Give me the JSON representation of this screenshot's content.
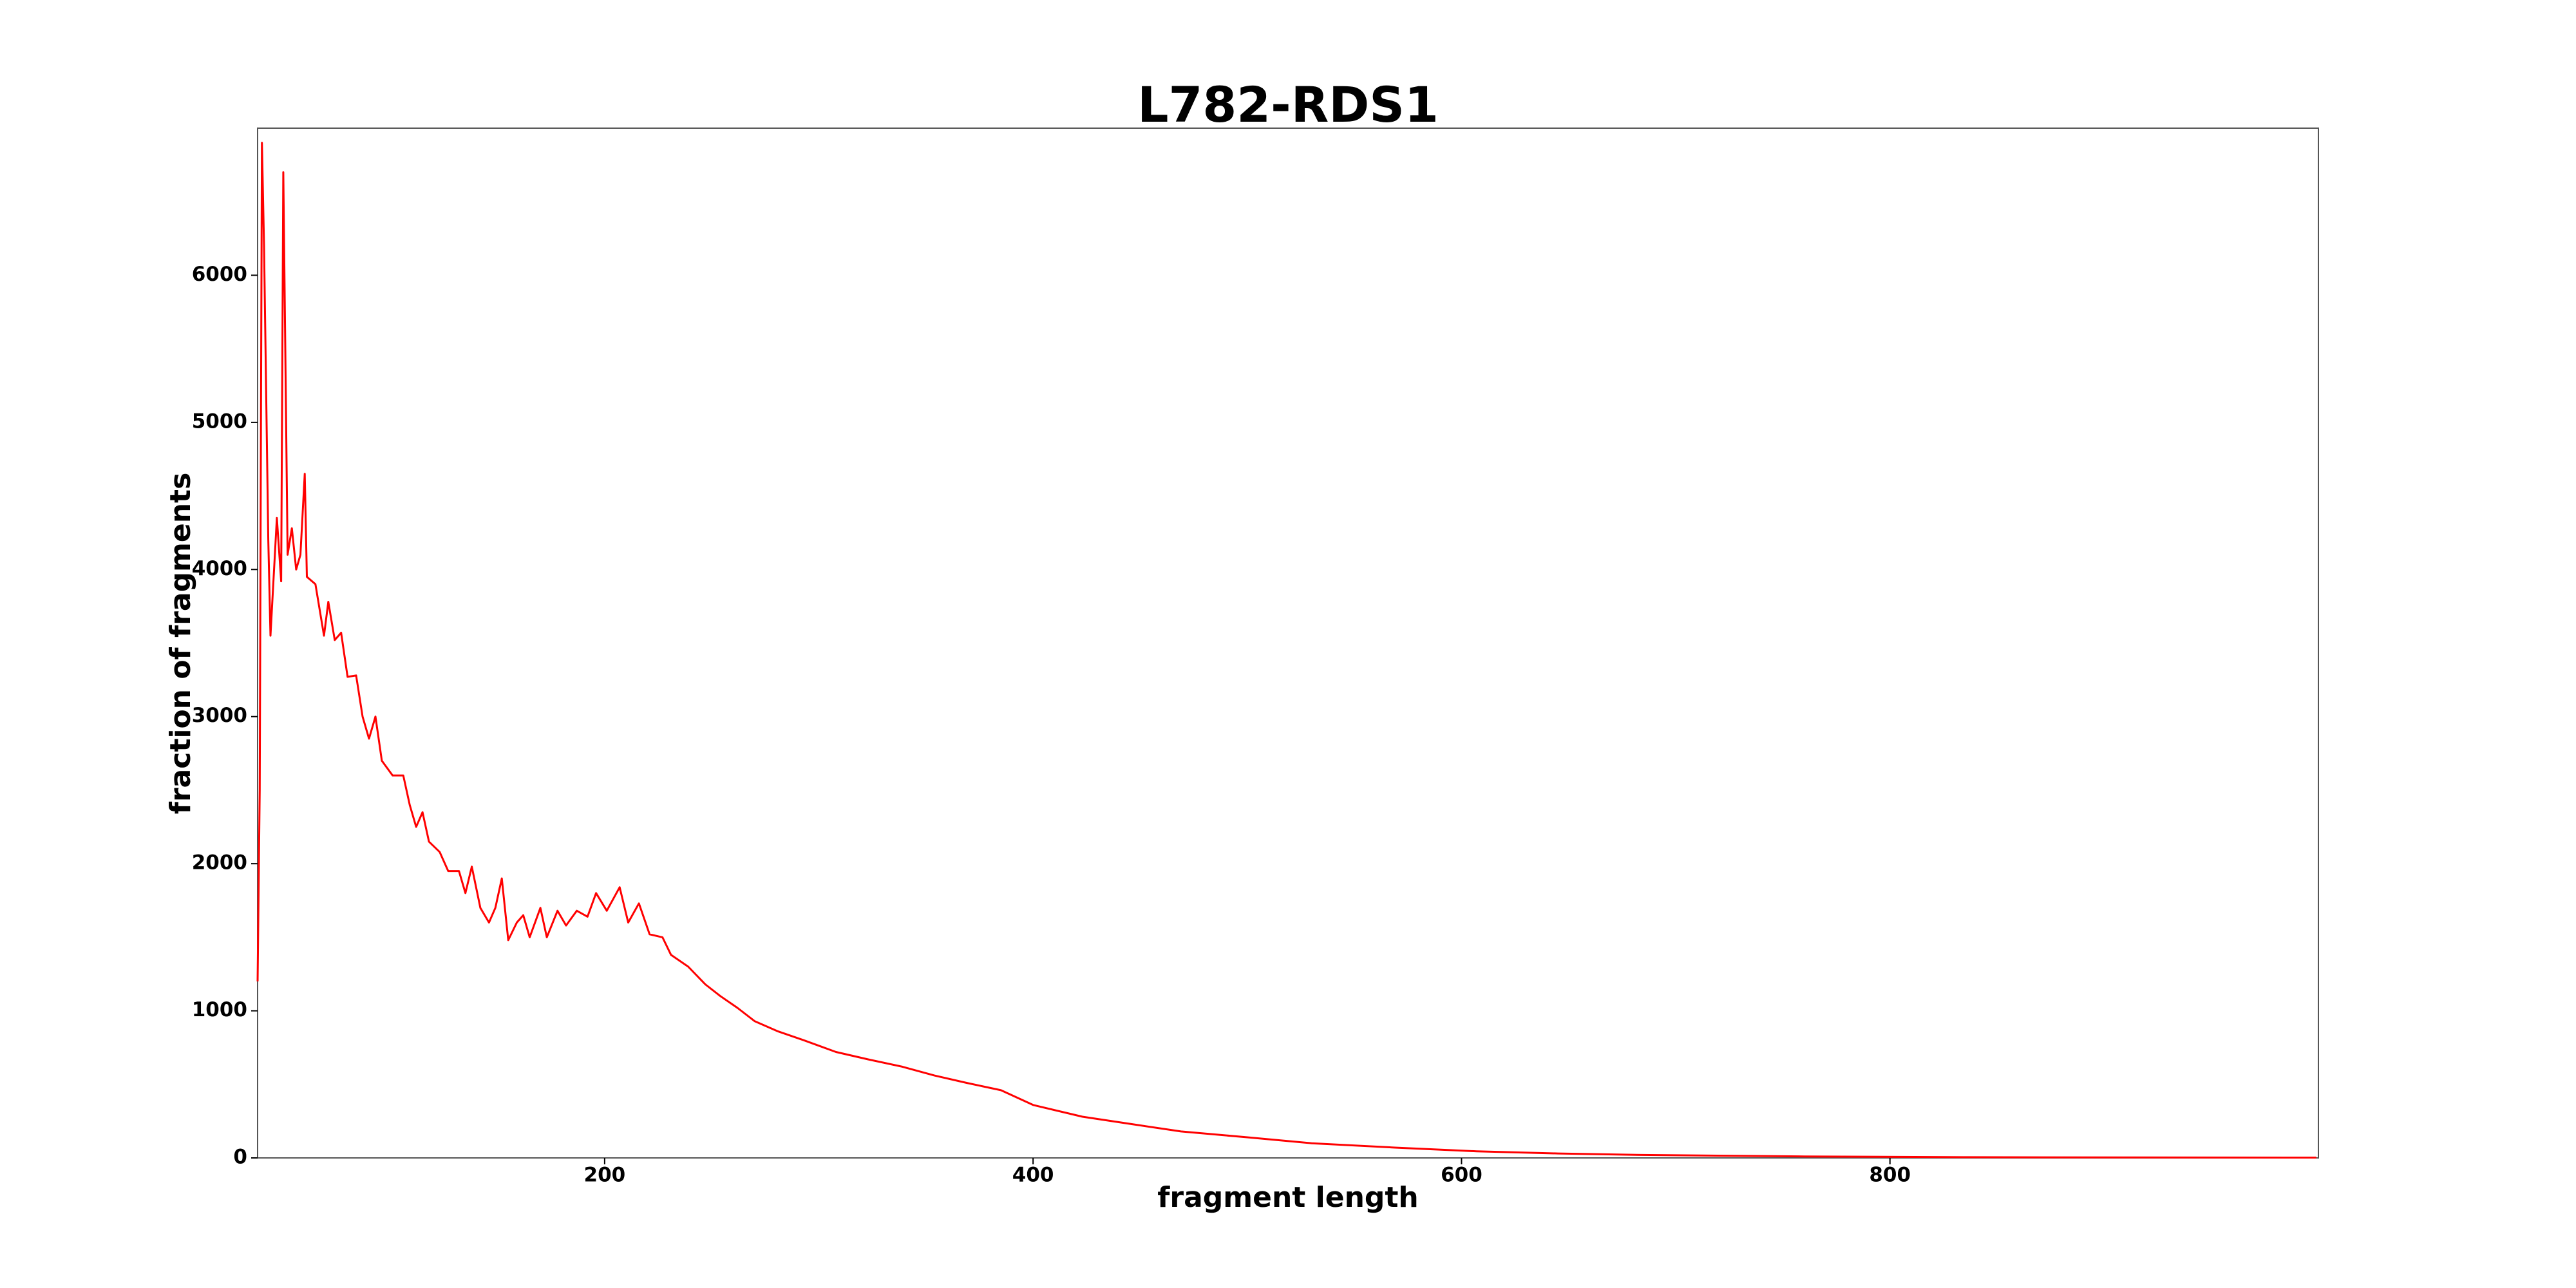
{
  "chart_data": {
    "type": "line",
    "title": "L782-RDS1",
    "x_label": "fragment length",
    "y_label": "fraction of fragments",
    "x": [
      38,
      39,
      40,
      41,
      43,
      44,
      47,
      49,
      50,
      52,
      54,
      56,
      58,
      60,
      61,
      65,
      69,
      71,
      74,
      77,
      80,
      84,
      87,
      90,
      93,
      96,
      101,
      106,
      109,
      112,
      115,
      118,
      123,
      127,
      132,
      135,
      138,
      142,
      146,
      149,
      152,
      155,
      159,
      162,
      165,
      170,
      173,
      178,
      182,
      187,
      192,
      196,
      201,
      207,
      211,
      216,
      221,
      227,
      231,
      239,
      247,
      254,
      262,
      270,
      281,
      293,
      308,
      323,
      339,
      354,
      369,
      385,
      400,
      423,
      446,
      469,
      500,
      530,
      569,
      607,
      645,
      684,
      760,
      837,
      914,
      999
    ],
    "series": [
      {
        "name": "L782-RDS1",
        "color": "#ff0000",
        "values": [
          1200,
          2500,
          6900,
          6200,
          4200,
          3550,
          4350,
          3920,
          6700,
          4100,
          4280,
          4000,
          4100,
          4650,
          3950,
          3900,
          3550,
          3780,
          3520,
          3570,
          3270,
          3280,
          3000,
          2850,
          3000,
          2700,
          2600,
          2600,
          2400,
          2250,
          2350,
          2150,
          2080,
          1950,
          1950,
          1800,
          1980,
          1700,
          1600,
          1700,
          1900,
          1480,
          1600,
          1650,
          1500,
          1700,
          1500,
          1680,
          1580,
          1680,
          1640,
          1800,
          1680,
          1840,
          1600,
          1730,
          1520,
          1500,
          1380,
          1300,
          1180,
          1100,
          1020,
          930,
          860,
          800,
          720,
          670,
          620,
          560,
          510,
          460,
          360,
          280,
          230,
          180,
          140,
          100,
          70,
          45,
          30,
          20,
          10,
          5,
          3,
          2
        ]
      }
    ],
    "xlim": [
      38,
      1000
    ],
    "ylim": [
      0,
      7000
    ],
    "xticks": [
      200,
      400,
      600,
      800
    ],
    "yticks": [
      0,
      1000,
      2000,
      3000,
      4000,
      5000,
      6000
    ]
  }
}
